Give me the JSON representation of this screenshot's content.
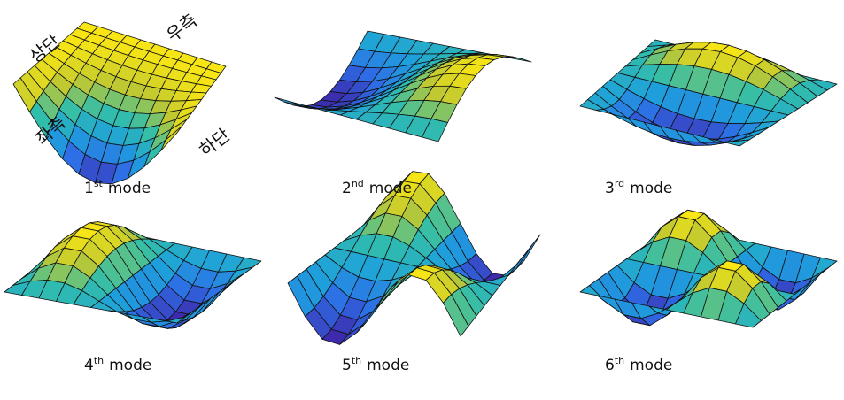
{
  "edge_labels": {
    "top": "상단",
    "right": "우측",
    "left": "좌측",
    "bottom": "하단"
  },
  "captions": [
    {
      "number": "1",
      "suffix": "st",
      "text": "mode"
    },
    {
      "number": "2",
      "suffix": "nd",
      "text": "mode"
    },
    {
      "number": "3",
      "suffix": "rd",
      "text": "mode"
    },
    {
      "number": "4",
      "suffix": "th",
      "text": "mode"
    },
    {
      "number": "5",
      "suffix": "th",
      "text": "mode"
    },
    {
      "number": "6",
      "suffix": "th",
      "text": "mode"
    }
  ]
}
